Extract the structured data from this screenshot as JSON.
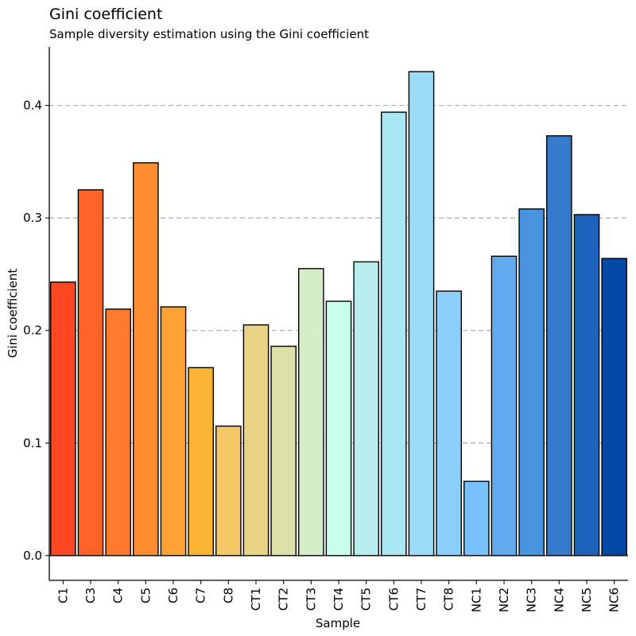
{
  "chart_data": {
    "type": "bar",
    "title": "Gini coefficient",
    "subtitle": "Sample diversity estimation using the Gini coefficient",
    "xlabel": "Sample",
    "ylabel": "Gini coefficient",
    "ylim": [
      -0.022,
      0.452
    ],
    "yticks": [
      0.0,
      0.1,
      0.2,
      0.3,
      0.4
    ],
    "ytick_labels": [
      "0.0",
      "0.1",
      "0.2",
      "0.3",
      "0.4"
    ],
    "grid": "horizontal dashed at major y ticks",
    "categories": [
      "C1",
      "C3",
      "C4",
      "C5",
      "C6",
      "C7",
      "C8",
      "CT1",
      "CT2",
      "CT3",
      "CT4",
      "CT5",
      "CT6",
      "CT7",
      "CT8",
      "NC1",
      "NC2",
      "NC3",
      "NC4",
      "NC5",
      "NC6"
    ],
    "values": [
      0.243,
      0.325,
      0.219,
      0.349,
      0.221,
      0.167,
      0.115,
      0.205,
      0.186,
      0.255,
      0.226,
      0.261,
      0.394,
      0.43,
      0.235,
      0.066,
      0.266,
      0.308,
      0.373,
      0.303,
      0.264
    ],
    "colors": [
      "#FF4722",
      "#FF6328",
      "#FF7A2D",
      "#FF8C2F",
      "#FFA234",
      "#FFB534",
      "#F4C866",
      "#E8D484",
      "#DCE2A7",
      "#D4EFC8",
      "#C8FEEC",
      "#B7EEED",
      "#A8E6F2",
      "#9ADBF7",
      "#8ACEFA",
      "#78C1FD",
      "#62AAEE",
      "#4994E0",
      "#347BCC",
      "#1D62B9",
      "#0448A5"
    ]
  }
}
